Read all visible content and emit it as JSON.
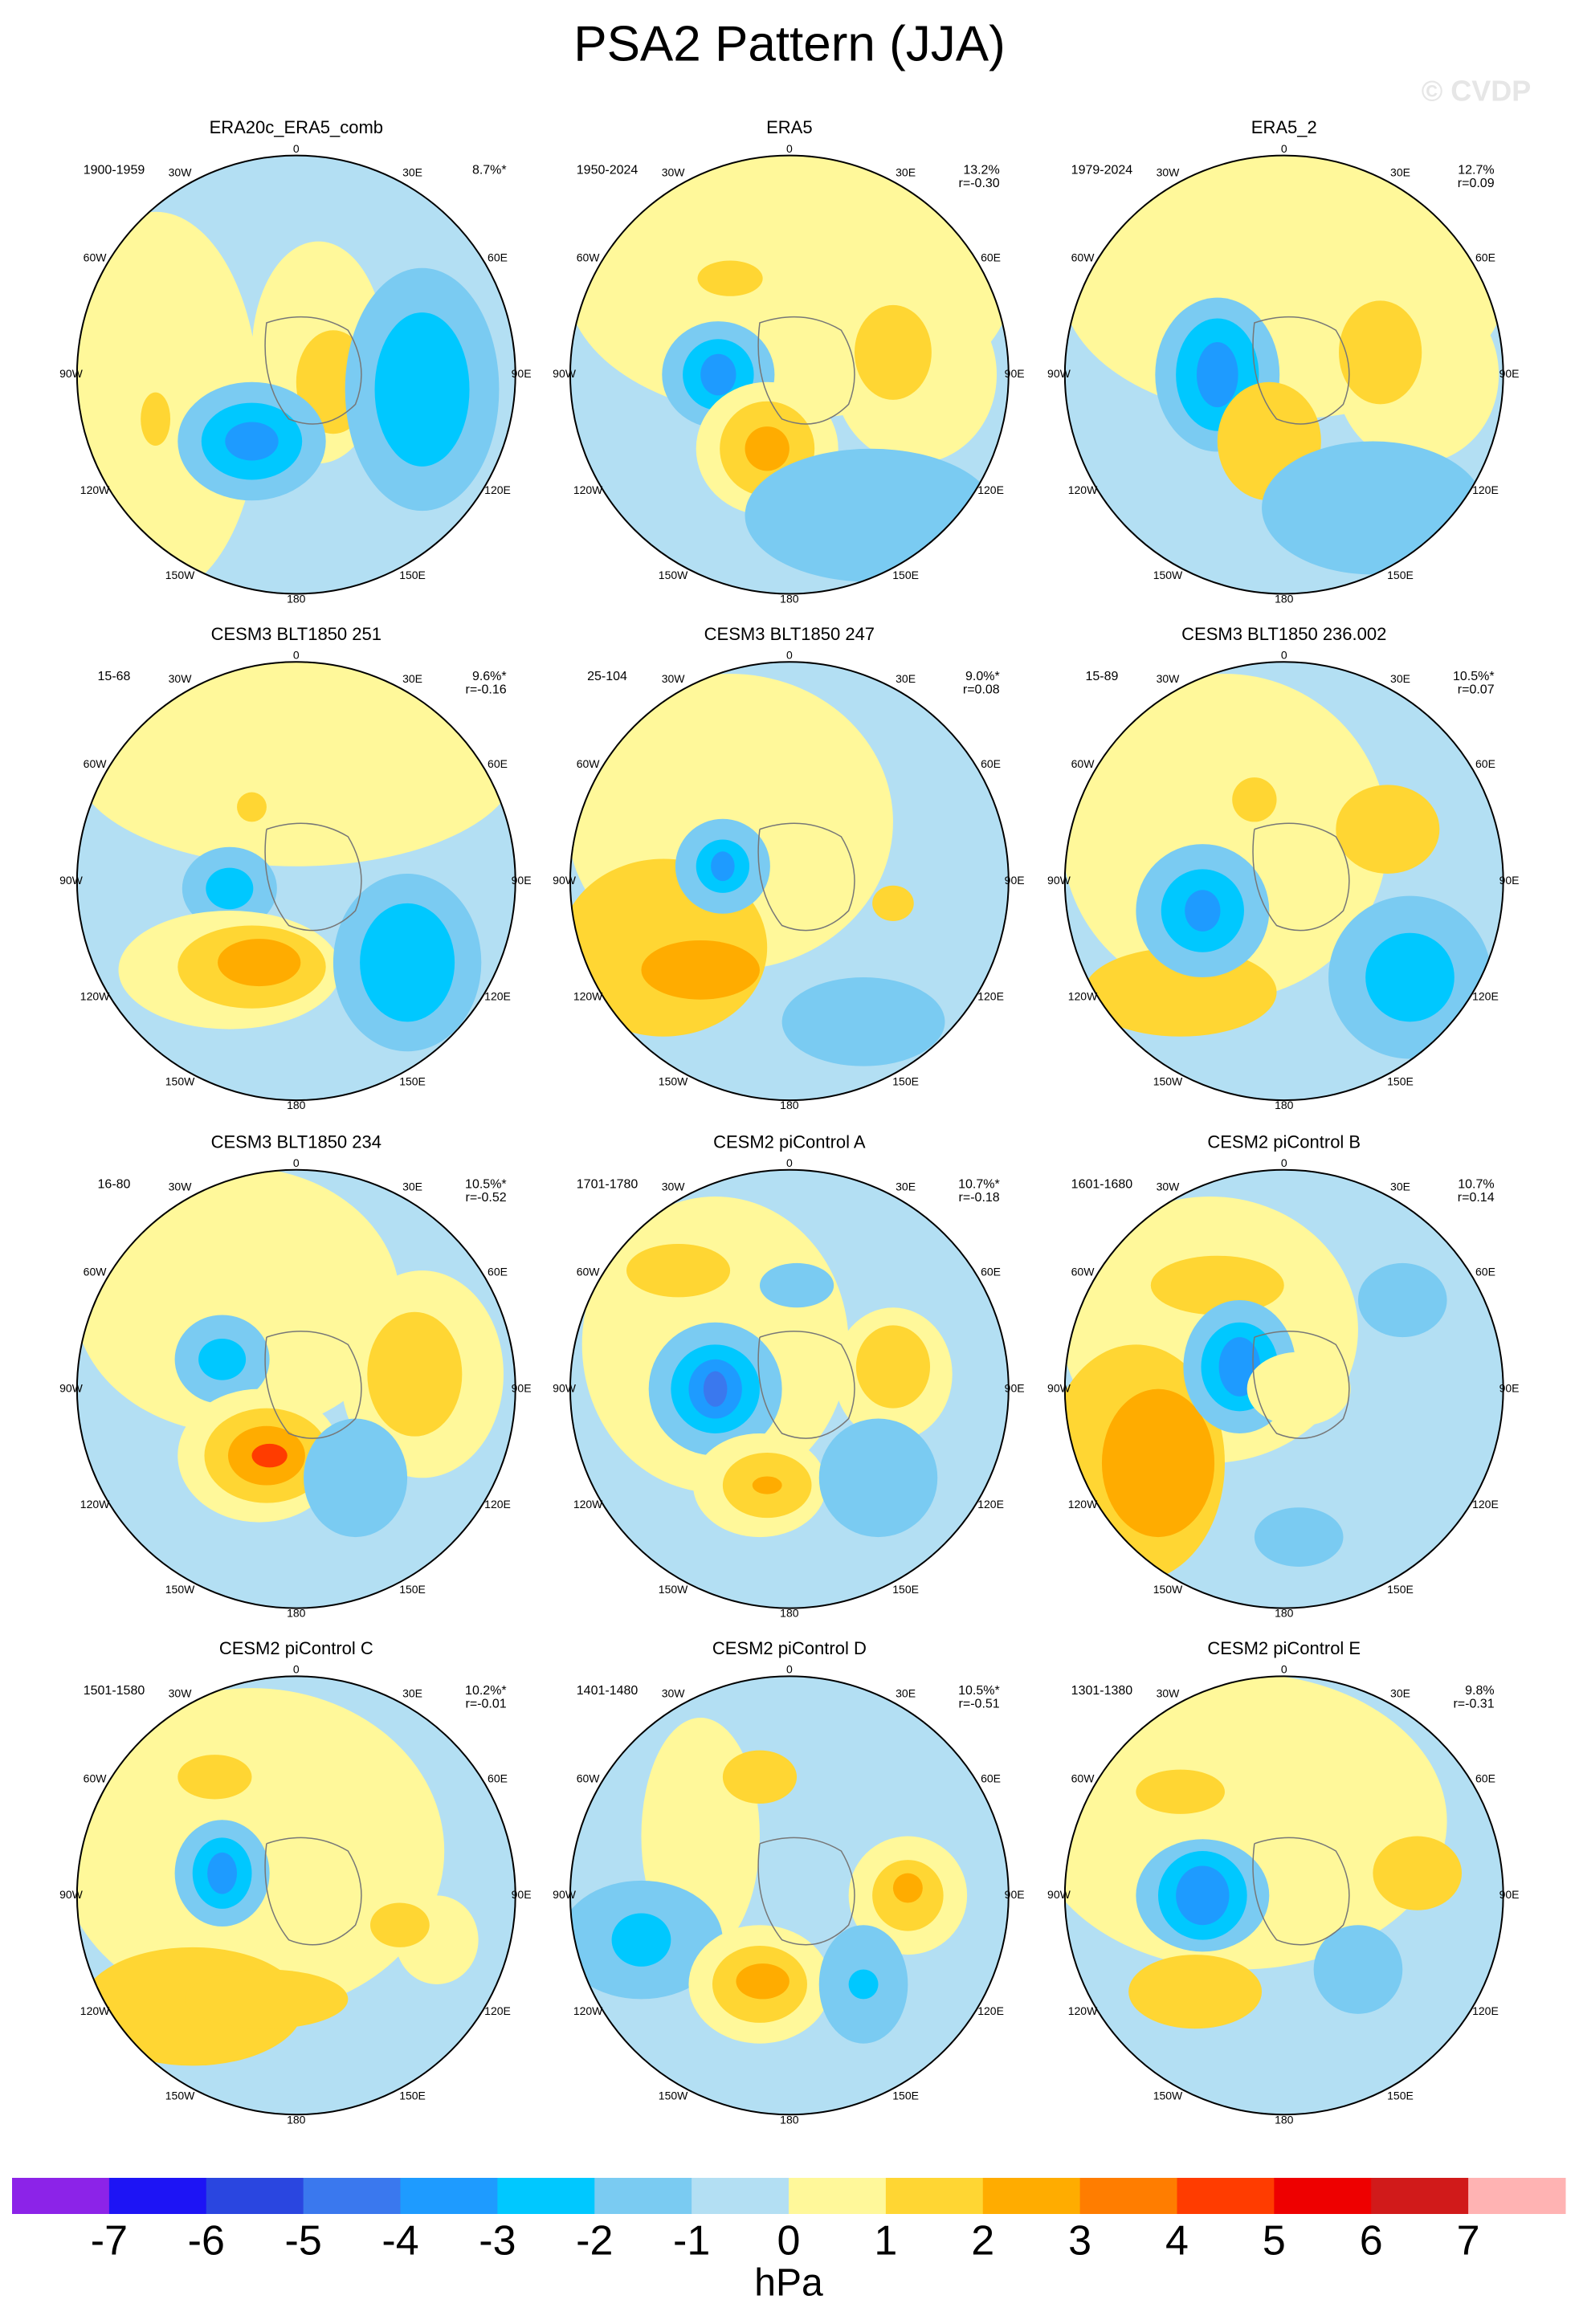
{
  "title": "PSA2 Pattern (JJA)",
  "watermark": "© CVDP",
  "lon_labels": [
    "0",
    "30E",
    "60E",
    "90E",
    "120E",
    "150E",
    "180",
    "150W",
    "120W",
    "90W",
    "60W",
    "30W"
  ],
  "panels": [
    {
      "title": "ERA20c_ERA5_comb",
      "period": "1900-1959",
      "pct": "8.7%*"
    },
    {
      "title": "ERA5",
      "period": "1950-2024",
      "pct": "13.2%",
      "r": "r=-0.30"
    },
    {
      "title": "ERA5_2",
      "period": "1979-2024",
      "pct": "12.7%",
      "r": "r=0.09"
    },
    {
      "title": "CESM3 BLT1850 251",
      "period": "15-68",
      "pct": "9.6%*",
      "r": "r=-0.16"
    },
    {
      "title": "CESM3 BLT1850 247",
      "period": "25-104",
      "pct": "9.0%*",
      "r": "r=0.08"
    },
    {
      "title": "CESM3 BLT1850 236.002",
      "period": "15-89",
      "pct": "10.5%*",
      "r": "r=0.07"
    },
    {
      "title": "CESM3 BLT1850 234",
      "period": "16-80",
      "pct": "10.5%*",
      "r": "r=-0.52"
    },
    {
      "title": "CESM2 piControl A",
      "period": "1701-1780",
      "pct": "10.7%*",
      "r": "r=-0.18"
    },
    {
      "title": "CESM2 piControl B",
      "period": "1601-1680",
      "pct": "10.7%",
      "r": "r=0.14"
    },
    {
      "title": "CESM2 piControl C",
      "period": "1501-1580",
      "pct": "10.2%*",
      "r": "r=-0.01"
    },
    {
      "title": "CESM2 piControl D",
      "period": "1401-1480",
      "pct": "10.5%*",
      "r": "r=-0.51"
    },
    {
      "title": "CESM2 piControl E",
      "period": "1301-1380",
      "pct": "9.8%",
      "r": "r=-0.31"
    }
  ],
  "colorbar": {
    "colors": [
      "#8c23e8",
      "#1d14f5",
      "#2a46e0",
      "#3a78ee",
      "#1e9bff",
      "#00c8ff",
      "#7acbf2",
      "#b3dff3",
      "#fff89a",
      "#ffd633",
      "#ffac00",
      "#ff7d00",
      "#ff3c00",
      "#ee0000",
      "#d11a1a",
      "#ffb3b3"
    ],
    "ticks": [
      -7,
      -6,
      -5,
      -4,
      -3,
      -2,
      -1,
      0,
      1,
      2,
      3,
      4,
      5,
      6,
      7
    ],
    "label": "hPa"
  }
}
